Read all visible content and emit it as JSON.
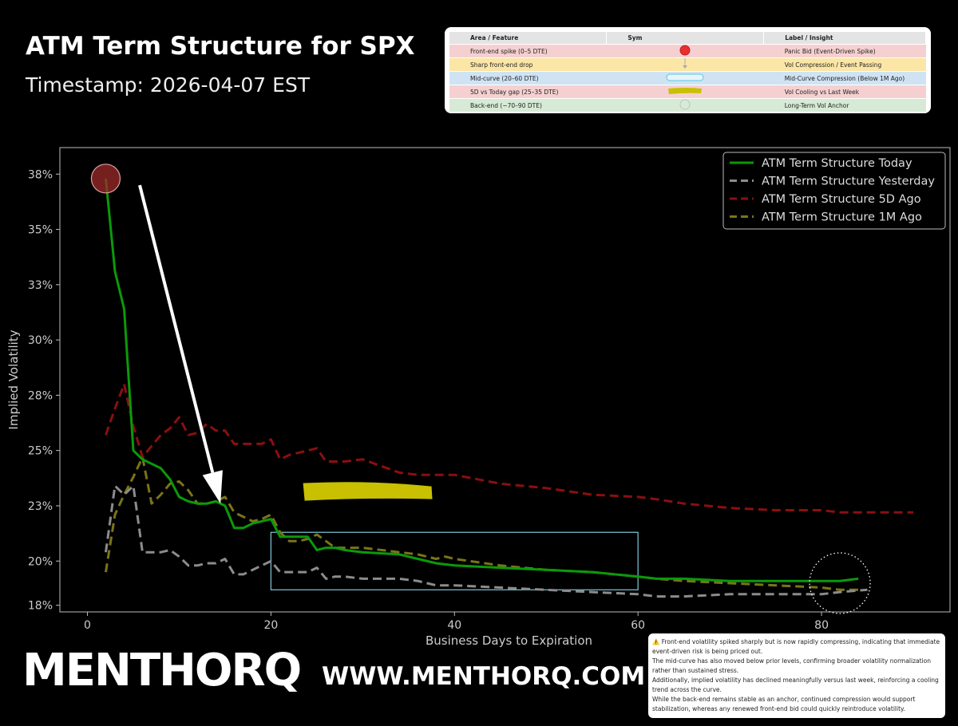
{
  "header": {
    "title": "ATM Term Structure for SPX",
    "subtitle": "Timestamp: 2026-04-07 EST"
  },
  "feature_table": {
    "columns": [
      "Area / Feature",
      "Sym",
      "Label / Insight"
    ],
    "rows": [
      {
        "area": "Front-end spike (0–5 DTE)",
        "label": "Panic Bid (Event-Driven Spike)",
        "bg": "#f6d0d0",
        "sym": "red-dot-icon"
      },
      {
        "area": "Sharp front-end drop",
        "label": "Vol Compression / Event Passing",
        "bg": "#fbe6a6",
        "sym": "down-arrow-icon"
      },
      {
        "area": "Mid-curve (20–60 DTE)",
        "label": "Mid-Curve Compression (Below 1M Ago)",
        "bg": "#cfe3f3",
        "sym": "cyan-box-icon"
      },
      {
        "area": "5D vs Today gap (25–35 DTE)",
        "label": "Vol Cooling vs Last Week",
        "bg": "#f6d0d0",
        "sym": "yellow-band-icon"
      },
      {
        "area": "Back-end (~70–90 DTE)",
        "label": "Long-Term Vol Anchor",
        "bg": "#d6ead6",
        "sym": "dotted-circle-icon"
      }
    ]
  },
  "chart_data": {
    "type": "line",
    "title": "",
    "xlabel": "Business Days to Expiration",
    "ylabel": "Implied Volatility",
    "xlim": [
      -3,
      94
    ],
    "ylim": [
      17.7,
      38.7
    ],
    "xticks": [
      0,
      20,
      40,
      60,
      80
    ],
    "yticks": [
      {
        "v": 18.0,
        "label": "18%"
      },
      {
        "v": 20.0,
        "label": "20%"
      },
      {
        "v": 22.5,
        "label": "23%"
      },
      {
        "v": 25.0,
        "label": "25%"
      },
      {
        "v": 27.5,
        "label": "28%"
      },
      {
        "v": 30.0,
        "label": "30%"
      },
      {
        "v": 32.5,
        "label": "33%"
      },
      {
        "v": 35.0,
        "label": "35%"
      },
      {
        "v": 37.5,
        "label": "38%"
      }
    ],
    "grid": false,
    "legend_position": "top-right",
    "series": [
      {
        "name": "ATM Term Structure Today",
        "color": "#0a9a0a",
        "dash": "solid",
        "x": [
          2,
          3,
          4,
          5,
          6,
          7,
          8,
          9,
          10,
          11,
          12,
          13,
          14,
          15,
          16,
          17,
          18,
          19,
          20,
          21,
          22,
          23,
          24,
          25,
          26,
          27,
          28,
          30,
          34,
          36,
          38,
          40,
          45,
          50,
          55,
          60,
          62,
          65,
          70,
          75,
          80,
          82,
          84
        ],
        "y": [
          37.3,
          33.1,
          31.4,
          25.0,
          24.6,
          24.4,
          24.2,
          23.7,
          22.9,
          22.7,
          22.6,
          22.6,
          22.7,
          22.5,
          21.5,
          21.5,
          21.7,
          21.8,
          21.9,
          21.1,
          21.1,
          21.1,
          21.1,
          20.5,
          20.6,
          20.6,
          20.5,
          20.4,
          20.3,
          20.1,
          19.9,
          19.8,
          19.7,
          19.6,
          19.5,
          19.3,
          19.2,
          19.2,
          19.1,
          19.1,
          19.1,
          19.1,
          19.2
        ]
      },
      {
        "name": "ATM Term Structure Yesterday",
        "color": "#8c8c8c",
        "dash": "dashed",
        "x": [
          2,
          3,
          4,
          5,
          6,
          7,
          8,
          9,
          10,
          11,
          12,
          13,
          14,
          15,
          16,
          17,
          18,
          19,
          20,
          21,
          22,
          23,
          24,
          25,
          26,
          27,
          28,
          30,
          34,
          36,
          38,
          40,
          45,
          50,
          55,
          60,
          62,
          65,
          70,
          75,
          80,
          82,
          85
        ],
        "y": [
          20.4,
          23.4,
          23.0,
          23.4,
          20.4,
          20.4,
          20.4,
          20.5,
          20.2,
          19.8,
          19.8,
          19.9,
          19.9,
          20.1,
          19.4,
          19.4,
          19.6,
          19.8,
          20.0,
          19.5,
          19.5,
          19.5,
          19.5,
          19.7,
          19.2,
          19.3,
          19.3,
          19.2,
          19.2,
          19.1,
          18.9,
          18.9,
          18.8,
          18.7,
          18.6,
          18.5,
          18.4,
          18.4,
          18.5,
          18.5,
          18.5,
          18.6,
          18.7
        ]
      },
      {
        "name": "ATM Term Structure 5D Ago",
        "color": "#8b0f0f",
        "dash": "dashed",
        "x": [
          2,
          3,
          4,
          5,
          6,
          7,
          8,
          9,
          10,
          11,
          12,
          13,
          14,
          15,
          16,
          17,
          18,
          19,
          20,
          21,
          22,
          23,
          24,
          25,
          26,
          27,
          28,
          30,
          34,
          36,
          38,
          40,
          45,
          50,
          55,
          60,
          62,
          65,
          70,
          75,
          80,
          82,
          85,
          90
        ],
        "y": [
          25.7,
          26.9,
          28.0,
          26.1,
          24.7,
          25.2,
          25.7,
          26.0,
          26.5,
          25.7,
          25.8,
          26.2,
          25.9,
          25.9,
          25.3,
          25.3,
          25.3,
          25.3,
          25.5,
          24.6,
          24.8,
          24.9,
          25.0,
          25.1,
          24.5,
          24.5,
          24.5,
          24.6,
          24.0,
          23.9,
          23.9,
          23.9,
          23.5,
          23.3,
          23.0,
          22.9,
          22.8,
          22.6,
          22.4,
          22.3,
          22.3,
          22.2,
          22.2,
          22.2
        ]
      },
      {
        "name": "ATM Term Structure 1M Ago",
        "color": "#7a7418",
        "dash": "dashed",
        "x": [
          2,
          3,
          4,
          5,
          6,
          7,
          8,
          9,
          10,
          11,
          12,
          13,
          14,
          15,
          16,
          17,
          18,
          19,
          20,
          21,
          22,
          23,
          24,
          25,
          26,
          27,
          28,
          30,
          34,
          36,
          38,
          39,
          40,
          45,
          50,
          55,
          60,
          62,
          65,
          70,
          75,
          80,
          82,
          84
        ],
        "y": [
          19.5,
          22.1,
          23.0,
          23.8,
          24.7,
          22.6,
          23.0,
          23.5,
          23.6,
          23.2,
          22.6,
          22.6,
          22.7,
          22.9,
          22.2,
          22.0,
          21.8,
          21.9,
          22.1,
          21.3,
          20.9,
          20.9,
          21.0,
          21.2,
          20.9,
          20.6,
          20.6,
          20.6,
          20.4,
          20.3,
          20.1,
          20.2,
          20.1,
          19.8,
          19.6,
          19.5,
          19.3,
          19.2,
          19.1,
          19.0,
          18.9,
          18.8,
          18.7,
          18.7
        ]
      }
    ],
    "annotations": [
      {
        "type": "spike-circle",
        "x": 2,
        "y": 37.3,
        "color": "#9c2a2a"
      },
      {
        "type": "arrow",
        "from": [
          5.7,
          37.0
        ],
        "to": [
          14.5,
          22.6
        ],
        "color": "#ffffff"
      },
      {
        "type": "highlight-box",
        "x0": 20,
        "x1": 60,
        "y0": 18.7,
        "y1": 21.3,
        "color": "#7fc8d8"
      },
      {
        "type": "yellow-band",
        "x0": 23.5,
        "x1": 37.5,
        "y": 23.2,
        "color": "#c8c000"
      },
      {
        "type": "dotted-circle",
        "x": 82,
        "y": 19.0,
        "color": "#ffffff"
      }
    ]
  },
  "notes": [
    "⚠️ Front-end volatility spiked sharply but is now rapidly compressing, indicating that immediate event-driven risk is being priced out.",
    "The mid-curve has also moved below prior levels, confirming broader volatility normalization rather than sustained stress.",
    "Additionally, implied volatility has declined meaningfully versus last week, reinforcing a cooling trend across the curve.",
    "While the back-end remains stable as an anchor, continued compression would support stabilization, whereas any renewed front-end bid could quickly reintroduce volatility."
  ],
  "branding": {
    "logo_text": "MENTHORQ",
    "url": "WWW.MENTHORQ.COM"
  }
}
